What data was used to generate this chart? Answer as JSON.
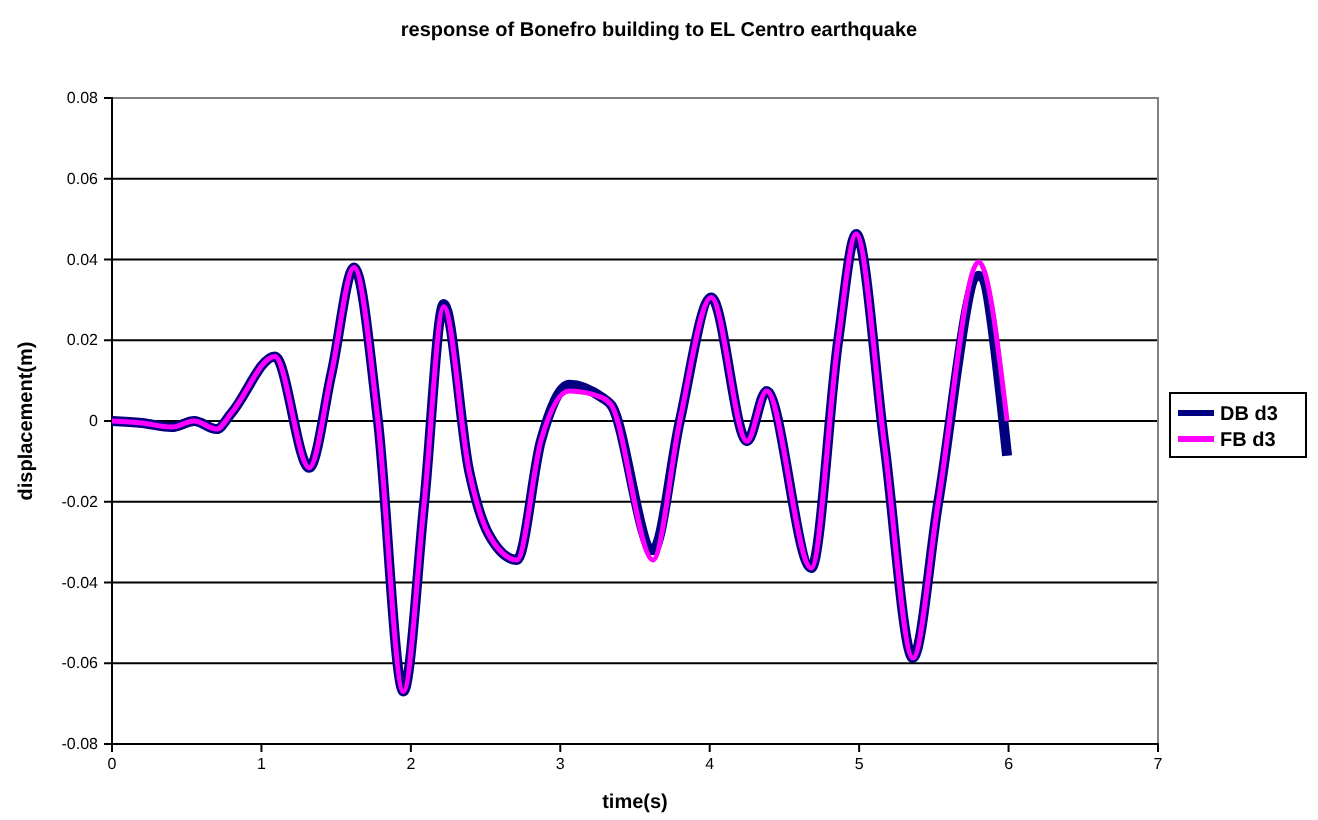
{
  "chart_data": {
    "type": "line",
    "title": "response of Bonefro building to EL Centro earthquake",
    "xlabel": "time(s)",
    "ylabel": "displacement(m)",
    "x": [
      0,
      0.2,
      0.4,
      0.55,
      0.7,
      0.8,
      1.09,
      1.32,
      1.47,
      1.62,
      1.78,
      1.95,
      2.09,
      2.22,
      2.39,
      2.52,
      2.71,
      2.87,
      3.06,
      3.28,
      3.34,
      3.62,
      3.8,
      4.01,
      4.25,
      4.38,
      4.68,
      4.86,
      4.98,
      5.17,
      5.36,
      5.53,
      5.8,
      5.99
    ],
    "series": [
      {
        "name": "DB d3",
        "color": "#000080",
        "values": [
          0,
          -0.0005,
          -0.0015,
          0,
          -0.002,
          0.002,
          0.016,
          -0.0116,
          0.012,
          0.038,
          0,
          -0.067,
          -0.02,
          0.029,
          -0.0124,
          -0.028,
          -0.0344,
          -0.005,
          0.009,
          0.0058,
          0.004,
          -0.032,
          0,
          0.0306,
          -0.005,
          0.0074,
          -0.0364,
          0.02,
          0.0463,
          -0.006,
          -0.0587,
          -0.02,
          0.036,
          -0.0086
        ]
      },
      {
        "name": "FB d3",
        "color": "#ff00ff",
        "values": [
          0,
          -0.0005,
          -0.0015,
          0,
          -0.002,
          0.002,
          0.016,
          -0.0116,
          0.012,
          0.038,
          0,
          -0.067,
          -0.02,
          0.0283,
          -0.0124,
          -0.028,
          -0.0344,
          -0.005,
          0.0074,
          0.0058,
          0.004,
          -0.0344,
          0,
          0.0306,
          -0.005,
          0.0074,
          -0.0364,
          0.02,
          0.0463,
          -0.006,
          -0.0587,
          -0.02,
          0.0394,
          0
        ]
      }
    ],
    "xlim": [
      0,
      7
    ],
    "xticks": [
      0,
      1,
      2,
      3,
      4,
      5,
      6,
      7
    ],
    "ylim": [
      -0.08,
      0.08
    ],
    "yticks": [
      -0.08,
      -0.06,
      -0.04,
      -0.02,
      0,
      0.02,
      0.04,
      0.06,
      0.08
    ],
    "grid": "y",
    "legend": "right"
  }
}
